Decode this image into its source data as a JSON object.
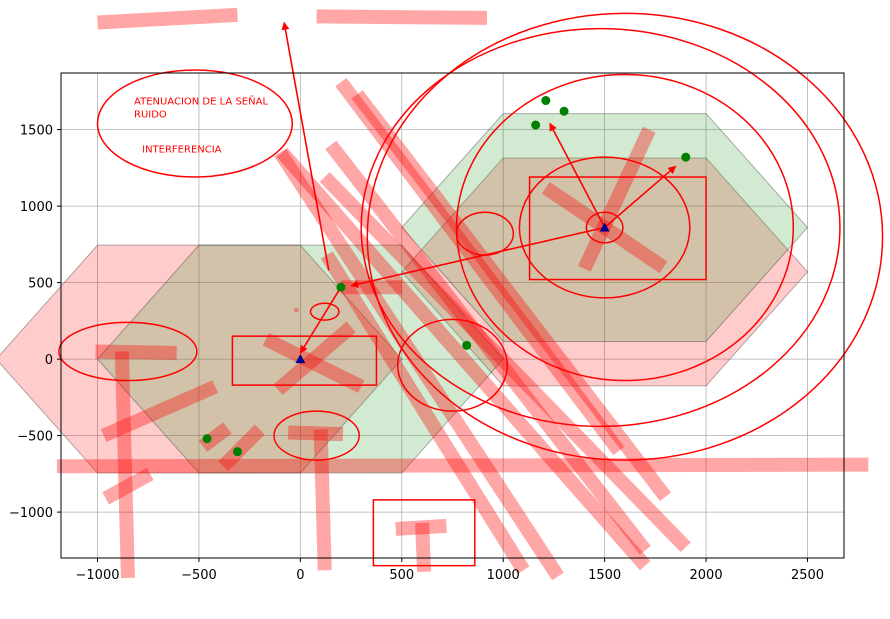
{
  "chart_data": {
    "type": "scatter",
    "title": "",
    "xlabel": "",
    "ylabel": "",
    "xlim": [
      -1180,
      2680
    ],
    "ylim": [
      -1300,
      1870
    ],
    "grid": true,
    "xticks": [
      -1000,
      -500,
      0,
      500,
      1000,
      1500,
      2000,
      2500
    ],
    "yticks": [
      -1000,
      -500,
      0,
      500,
      1000,
      1500
    ],
    "annotations": [
      {
        "text": "ATENUACION DE LA SEÑAL",
        "x": -820,
        "y": 1665
      },
      {
        "text": "RUIDO",
        "x": -820,
        "y": 1580
      },
      {
        "text": "INTERFERENCIA",
        "x": -780,
        "y": 1350
      }
    ],
    "base_stations": [
      {
        "x": 0,
        "y": 0
      },
      {
        "x": 1500,
        "y": 860
      }
    ],
    "users": [
      {
        "x": 200,
        "y": 470
      },
      {
        "x": 820,
        "y": 90
      },
      {
        "x": -460,
        "y": -520
      },
      {
        "x": -310,
        "y": -605
      },
      {
        "x": 1210,
        "y": 1690
      },
      {
        "x": 1160,
        "y": 1530
      },
      {
        "x": 1300,
        "y": 1620
      },
      {
        "x": 1900,
        "y": 1320
      }
    ],
    "green_hexagons": [
      {
        "cx": 0,
        "cy": 0,
        "r": 1000
      },
      {
        "cx": 1500,
        "cy": 860,
        "r": 1000
      }
    ],
    "pink_hexagons": [
      {
        "cx": -500,
        "cy": 0,
        "r": 1000
      },
      {
        "cx": 1500,
        "cy": 570,
        "r": 1000
      }
    ],
    "colors": {
      "green_fill": "#2ca02c",
      "pink_fill": "#ff0000",
      "annotation": "#ff0000",
      "user_marker": "#008000",
      "station_marker": "#00008b",
      "interference_band": "#ff0000"
    },
    "ellipses": [
      {
        "cx": -520,
        "cy": 1540,
        "rx": 480,
        "ry": 350
      },
      {
        "cx": 1500,
        "cy": 860,
        "rx": 420,
        "ry": 460
      },
      {
        "cx": 1500,
        "cy": 860,
        "rx": 90,
        "ry": 100
      },
      {
        "cx": 1600,
        "cy": 860,
        "rx": 830,
        "ry": 1000
      },
      {
        "cx": 1600,
        "cy": 800,
        "rx": 1270,
        "ry": 1460
      },
      {
        "cx": 1480,
        "cy": 860,
        "rx": 1180,
        "ry": 1300
      },
      {
        "cx": 910,
        "cy": 820,
        "rx": 140,
        "ry": 140
      },
      {
        "cx": -850,
        "cy": 50,
        "rx": 340,
        "ry": 190
      },
      {
        "cx": 120,
        "cy": 310,
        "rx": 70,
        "ry": 55
      },
      {
        "cx": 750,
        "cy": -40,
        "rx": 270,
        "ry": 300
      },
      {
        "cx": 80,
        "cy": -500,
        "rx": 210,
        "ry": 160
      }
    ],
    "rectangles": [
      {
        "x0": 1130,
        "x1": 2000,
        "y0": 520,
        "y1": 1190
      },
      {
        "x0": -335,
        "x1": 375,
        "y0": -170,
        "y1": 150
      },
      {
        "x0": 360,
        "x1": 860,
        "y0": -1350,
        "y1": -920
      }
    ],
    "arrows": [
      {
        "from": [
          1500,
          860
        ],
        "to": [
          1230,
          1540
        ]
      },
      {
        "from": [
          1500,
          860
        ],
        "to": [
          1850,
          1260
        ]
      },
      {
        "from": [
          1500,
          860
        ],
        "to": [
          250,
          480
        ]
      },
      {
        "from": [
          200,
          470
        ],
        "to": [
          0,
          40
        ]
      },
      {
        "from": [
          140,
          580
        ],
        "to": [
          -80,
          2200
        ]
      }
    ],
    "bands": [
      {
        "from": [
          -1000,
          2200
        ],
        "to": [
          -310,
          2250
        ],
        "width": 14
      },
      {
        "from": [
          80,
          2240
        ],
        "to": [
          920,
          2230
        ],
        "width": 14
      },
      {
        "from": [
          -1200,
          -700
        ],
        "to": [
          2800,
          -690
        ],
        "width": 14
      },
      {
        "from": [
          -960,
          -910
        ],
        "to": [
          -740,
          -750
        ],
        "width": 14
      },
      {
        "from": [
          -880,
          50
        ],
        "to": [
          -850,
          -1430
        ],
        "width": 14
      },
      {
        "from": [
          -1010,
          50
        ],
        "to": [
          -610,
          40
        ],
        "width": 14
      },
      {
        "from": [
          -970,
          -500
        ],
        "to": [
          -420,
          -180
        ],
        "width": 14
      },
      {
        "from": [
          -100,
          1350
        ],
        "to": [
          1270,
          -1420
        ],
        "width": 14
      },
      {
        "from": [
          -90,
          1350
        ],
        "to": [
          1700,
          -1350
        ],
        "width": 14
      },
      {
        "from": [
          120,
          1190
        ],
        "to": [
          1900,
          -1230
        ],
        "width": 14
      },
      {
        "from": [
          200,
          1810
        ],
        "to": [
          1570,
          -600
        ],
        "width": 14
      },
      {
        "from": [
          280,
          1730
        ],
        "to": [
          1800,
          -900
        ],
        "width": 14
      },
      {
        "from": [
          150,
          1400
        ],
        "to": [
          1700,
          -1250
        ],
        "width": 14
      },
      {
        "from": [
          130,
          680
        ],
        "to": [
          1100,
          -1380
        ],
        "width": 14
      },
      {
        "from": [
          -170,
          130
        ],
        "to": [
          300,
          -180
        ],
        "width": 14
      },
      {
        "from": [
          -110,
          -200
        ],
        "to": [
          250,
          210
        ],
        "width": 14
      },
      {
        "from": [
          200,
          470
        ],
        "to": [
          500,
          470
        ],
        "width": 14
      },
      {
        "from": [
          -480,
          -570
        ],
        "to": [
          -360,
          -450
        ],
        "width": 14
      },
      {
        "from": [
          -380,
          -700
        ],
        "to": [
          -200,
          -460
        ],
        "width": 14
      },
      {
        "from": [
          -60,
          -480
        ],
        "to": [
          210,
          -490
        ],
        "width": 14
      },
      {
        "from": [
          100,
          -460
        ],
        "to": [
          120,
          -1380
        ],
        "width": 14
      },
      {
        "from": [
          470,
          -1110
        ],
        "to": [
          720,
          -1090
        ],
        "width": 14
      },
      {
        "from": [
          600,
          -1070
        ],
        "to": [
          610,
          -1390
        ],
        "width": 14
      },
      {
        "from": [
          1720,
          1500
        ],
        "to": [
          1400,
          590
        ],
        "width": 14
      },
      {
        "from": [
          1210,
          1120
        ],
        "to": [
          1790,
          600
        ],
        "width": 14
      },
      {
        "from": [
          -30,
          320
        ],
        "to": [
          -10,
          320
        ],
        "width": 4
      }
    ]
  }
}
